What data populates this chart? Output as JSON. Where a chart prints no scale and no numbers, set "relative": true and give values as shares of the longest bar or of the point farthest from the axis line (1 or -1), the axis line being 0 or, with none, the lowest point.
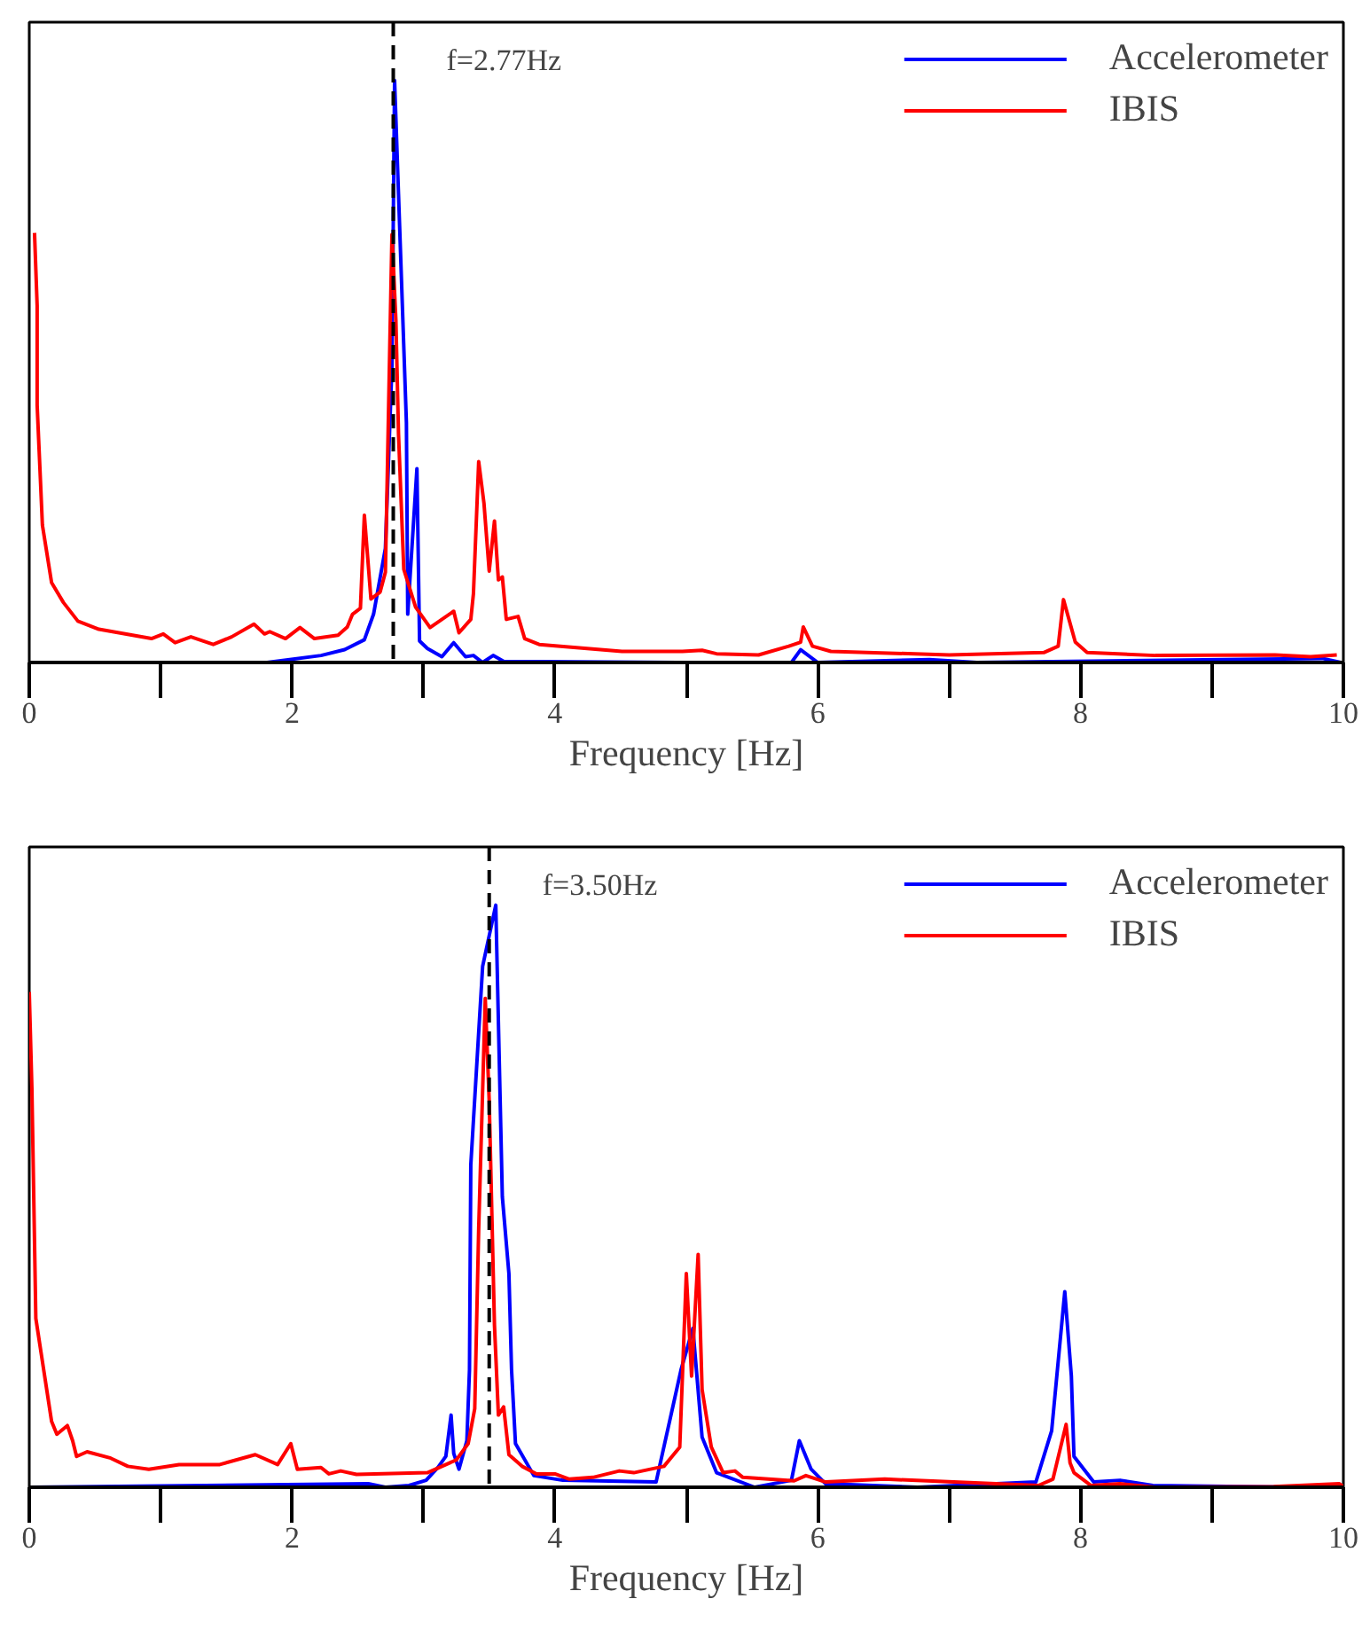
{
  "chart_data": [
    {
      "type": "line",
      "relative": true,
      "xlabel": "Frequency [Hz]",
      "xlim": [
        0,
        10
      ],
      "xticks": [
        0,
        2,
        4,
        6,
        8,
        10
      ],
      "legend": "top right",
      "grid": false,
      "tick_labels": "x",
      "ref_lines": [
        {
          "axis": "x",
          "value": 2.77,
          "label": "f=2.77Hz",
          "line_style": "dashed",
          "color": "#000000"
        }
      ],
      "series": [
        {
          "name": "Accelerometer",
          "color": "#0000ff",
          "x": [
            0,
            1.81,
            2.22,
            2.4,
            2.55,
            2.62,
            2.71,
            2.76,
            2.78,
            2.81,
            2.87,
            2.88,
            2.95,
            2.97,
            3.03,
            3.14,
            3.23,
            3.32,
            3.38,
            3.45,
            3.53,
            3.61,
            4.96,
            5.8,
            5.87,
            6.0,
            6.85,
            7.21,
            9.84,
            9.98
          ],
          "values": [
            0,
            0,
            0.012,
            0.022,
            0.039,
            0.083,
            0.196,
            0.51,
            1.0,
            0.804,
            0.412,
            0.083,
            0.333,
            0.037,
            0.024,
            0.01,
            0.034,
            0.01,
            0.012,
            0,
            0.012,
            0.002,
            0,
            0,
            0.022,
            0,
            0.005,
            0,
            0.007,
            0
          ]
        },
        {
          "name": "IBIS",
          "color": "#ff0000",
          "x": [
            0.04,
            0.06,
            0.06,
            0.1,
            0.17,
            0.26,
            0.37,
            0.53,
            0.93,
            1.02,
            1.11,
            1.23,
            1.4,
            1.54,
            1.71,
            1.79,
            1.83,
            1.95,
            2.06,
            2.17,
            2.35,
            2.42,
            2.46,
            2.52,
            2.55,
            2.6,
            2.67,
            2.71,
            2.76,
            2.79,
            2.81,
            2.85,
            2.94,
            3.05,
            3.23,
            3.27,
            3.36,
            3.38,
            3.42,
            3.46,
            3.5,
            3.54,
            3.57,
            3.6,
            3.63,
            3.72,
            3.77,
            3.88,
            4.51,
            4.97,
            5.12,
            5.23,
            5.55,
            5.78,
            5.87,
            5.89,
            5.96,
            6.1,
            7.0,
            7.72,
            7.83,
            7.87,
            7.96,
            8.05,
            8.57,
            9.48,
            9.75,
            9.95
          ],
          "values": [
            0.738,
            0.613,
            0.442,
            0.236,
            0.137,
            0.103,
            0.071,
            0.057,
            0.041,
            0.049,
            0.034,
            0.044,
            0.031,
            0.044,
            0.066,
            0.049,
            0.053,
            0.041,
            0.06,
            0.041,
            0.047,
            0.061,
            0.083,
            0.093,
            0.253,
            0.109,
            0.121,
            0.155,
            0.735,
            0.588,
            0.392,
            0.16,
            0.095,
            0.06,
            0.088,
            0.051,
            0.074,
            0.118,
            0.345,
            0.274,
            0.157,
            0.243,
            0.142,
            0.147,
            0.074,
            0.079,
            0.041,
            0.031,
            0.019,
            0.019,
            0.021,
            0.015,
            0.013,
            0.028,
            0.035,
            0.061,
            0.028,
            0.019,
            0.013,
            0.017,
            0.028,
            0.108,
            0.035,
            0.017,
            0.012,
            0.013,
            0.01,
            0.013
          ]
        }
      ]
    },
    {
      "type": "line",
      "relative": true,
      "xlabel": "Frequency [Hz]",
      "xlim": [
        0,
        10
      ],
      "xticks": [
        0,
        2,
        4,
        6,
        8,
        10
      ],
      "legend": "top right",
      "grid": false,
      "tick_labels": "x",
      "ref_lines": [
        {
          "axis": "x",
          "value": 3.5,
          "label": "f=3.50Hz",
          "line_style": "dashed",
          "color": "#000000"
        }
      ],
      "series": [
        {
          "name": "Accelerometer",
          "color": "#0000ff",
          "x": [
            0,
            2.58,
            2.71,
            2.89,
            3.02,
            3.11,
            3.17,
            3.21,
            3.23,
            3.27,
            3.33,
            3.35,
            3.36,
            3.45,
            3.55,
            3.6,
            3.65,
            3.67,
            3.7,
            3.84,
            4.06,
            4.77,
            4.96,
            5.05,
            5.12,
            5.23,
            5.52,
            5.8,
            5.86,
            5.95,
            6.06,
            6.76,
            7.66,
            7.78,
            7.88,
            7.93,
            7.95,
            8.1,
            8.3,
            8.55,
            9.68
          ],
          "values": [
            0,
            0.006,
            0,
            0.003,
            0.012,
            0.034,
            0.053,
            0.124,
            0.058,
            0.031,
            0.08,
            0.202,
            0.554,
            0.895,
            1.0,
            0.499,
            0.367,
            0.202,
            0.075,
            0.02,
            0.012,
            0.009,
            0.202,
            0.273,
            0.086,
            0.025,
            0,
            0.012,
            0.08,
            0.031,
            0.006,
            0,
            0.009,
            0.097,
            0.336,
            0.191,
            0.053,
            0.009,
            0.012,
            0.003,
            0
          ]
        },
        {
          "name": "IBIS",
          "color": "#ff0000",
          "x": [
            0,
            0.02,
            0.05,
            0.17,
            0.21,
            0.29,
            0.33,
            0.36,
            0.44,
            0.62,
            0.75,
            0.91,
            1.14,
            1.45,
            1.72,
            1.89,
            1.99,
            2.04,
            2.22,
            2.28,
            2.37,
            2.49,
            3.03,
            3.25,
            3.34,
            3.39,
            3.42,
            3.47,
            3.5,
            3.54,
            3.57,
            3.61,
            3.65,
            3.75,
            3.86,
            4.0,
            4.11,
            4.29,
            4.49,
            4.6,
            4.83,
            4.95,
            5.0,
            5.04,
            5.09,
            5.12,
            5.19,
            5.28,
            5.37,
            5.43,
            5.82,
            5.91,
            6.06,
            6.51,
            7.68,
            7.79,
            7.89,
            7.92,
            7.95,
            8.08,
            8.3,
            8.57,
            9.47,
            9.97,
            10.0
          ],
          "values": [
            0.851,
            0.686,
            0.29,
            0.113,
            0.091,
            0.106,
            0.08,
            0.053,
            0.061,
            0.05,
            0.036,
            0.031,
            0.039,
            0.039,
            0.056,
            0.039,
            0.075,
            0.031,
            0.034,
            0.023,
            0.028,
            0.022,
            0.025,
            0.047,
            0.075,
            0.135,
            0.444,
            0.84,
            0.664,
            0.279,
            0.124,
            0.138,
            0.056,
            0.036,
            0.023,
            0.023,
            0.014,
            0.017,
            0.028,
            0.025,
            0.036,
            0.069,
            0.367,
            0.191,
            0.4,
            0.168,
            0.069,
            0.025,
            0.028,
            0.017,
            0.011,
            0.02,
            0.009,
            0.014,
            0.003,
            0.014,
            0.108,
            0.042,
            0.025,
            0.003,
            0.006,
            0,
            0.001,
            0.006,
            0.001
          ]
        }
      ]
    }
  ]
}
